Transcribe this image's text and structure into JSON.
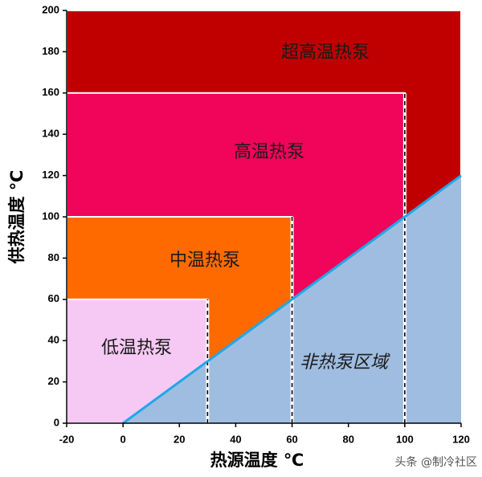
{
  "chart_data": {
    "type": "region",
    "x_label": "热源温度 ℃",
    "y_label": "供热温度 ℃",
    "xlim": [
      -20,
      120
    ],
    "ylim": [
      0,
      200
    ],
    "xticks": [
      -20,
      0,
      20,
      40,
      60,
      80,
      100,
      120
    ],
    "yticks": [
      0,
      20,
      40,
      60,
      80,
      100,
      120,
      140,
      160,
      180,
      200
    ],
    "regions": [
      {
        "name": "超高温热泵",
        "x": [
          -20,
          120
        ],
        "y": [
          0,
          200
        ],
        "color": "#c00000"
      },
      {
        "name": "高温热泵",
        "x": [
          -20,
          100
        ],
        "y": [
          0,
          160
        ],
        "color": "#f0055a"
      },
      {
        "name": "中温热泵",
        "x": [
          -20,
          60
        ],
        "y": [
          0,
          100
        ],
        "color": "#ff6a00"
      },
      {
        "name": "低温热泵",
        "x": [
          -20,
          30
        ],
        "y": [
          0,
          60
        ],
        "color": "#f6c8f4"
      }
    ],
    "non_region": {
      "name": "非热泵区域",
      "x": [
        0,
        120,
        120
      ],
      "y": [
        0,
        120,
        0
      ],
      "color": "#9fbde0",
      "edge_color": "#1ea8e8"
    },
    "watermark": "头条 @制冷社区"
  }
}
